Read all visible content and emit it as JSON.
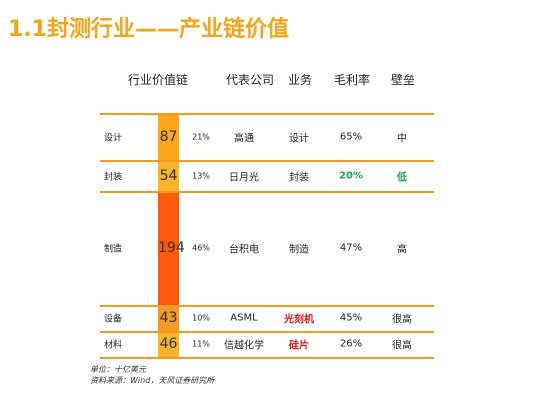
{
  "title": "1.1封测行业——产业链价值",
  "headers": [
    "行业价值链",
    "代表公司",
    "业务",
    "毛利率",
    "壁垒"
  ],
  "rows": [
    {
      "label": "设计",
      "value": "87",
      "share": "21%",
      "company": "高通",
      "business": "设计",
      "margin": "65%",
      "barrier": "中"
    },
    {
      "label": "封装",
      "value": "54",
      "share": "13%",
      "company": "日月光",
      "business": "封装",
      "margin": "20%",
      "barrier": "低"
    },
    {
      "label": "制造",
      "value": "194",
      "share": "46%",
      "company": "台积电",
      "business": "制造",
      "margin": "47%",
      "barrier": "高"
    },
    {
      "label": "设备",
      "value": "43",
      "share": "10%",
      "company": "ASML",
      "business": "光刻机",
      "margin": "45%",
      "barrier": "很高"
    },
    {
      "label": "材料",
      "value": "46",
      "share": "11%",
      "company": "信越化学",
      "business": "硅片",
      "margin": "26%",
      "barrier": "很高"
    }
  ],
  "notes": {
    "unit": "单位：十亿美元",
    "source": "资料来源：Wind，天风证券研究所"
  },
  "colors": {
    "title": "#f2a51a",
    "line": "#f39a21",
    "green": "#1ea84a",
    "red": "#d8171d",
    "bar": [
      "#f9a71b",
      "#f8b52b",
      "#fb5a0f",
      "#f29a27",
      "#f8b42b"
    ]
  }
}
